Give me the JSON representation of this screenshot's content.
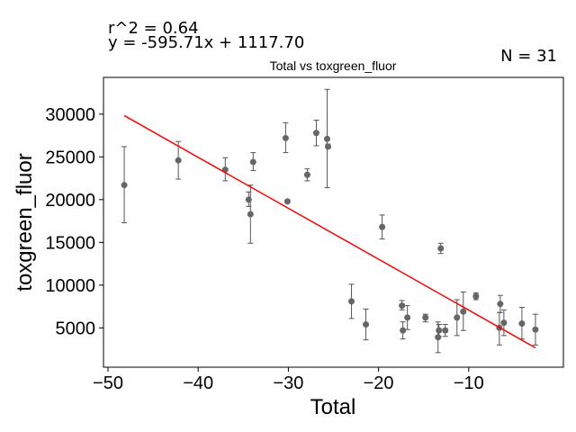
{
  "chart_data": {
    "type": "scatter",
    "title": "Total vs toxgreen_fluor",
    "xlabel": "Total",
    "ylabel": "toxgreen_fluor",
    "xlim": [
      -50.5,
      0.5
    ],
    "ylim": [
      400,
      34300
    ],
    "x_ticks": [
      -50,
      -40,
      -30,
      -20,
      -10
    ],
    "x_tick_labels": [
      "−50",
      "−40",
      "−30",
      "−20",
      "−10"
    ],
    "y_ticks": [
      5000,
      10000,
      15000,
      20000,
      25000,
      30000
    ],
    "y_tick_labels": [
      "5000",
      "10000",
      "15000",
      "20000",
      "25000",
      "30000"
    ],
    "grid": false,
    "annotations": {
      "r2": "r^2 = 0.64",
      "equation": "y = -595.71x + 1117.70",
      "n": "N = 31"
    },
    "regression": {
      "slope": -595.71,
      "intercept": 1117.7,
      "x_range": [
        -48.2,
        -2.6
      ]
    },
    "points": [
      {
        "x": -48.2,
        "y": 21700,
        "lo": 17300,
        "hi": 26200
      },
      {
        "x": -42.2,
        "y": 24600,
        "lo": 22400,
        "hi": 26800
      },
      {
        "x": -37.0,
        "y": 23500,
        "lo": 22200,
        "hi": 24900
      },
      {
        "x": -34.4,
        "y": 20000,
        "lo": 19200,
        "hi": 20900
      },
      {
        "x": -34.2,
        "y": 18300,
        "lo": 14900,
        "hi": 21700
      },
      {
        "x": -33.9,
        "y": 24400,
        "lo": 23400,
        "hi": 25500
      },
      {
        "x": -30.3,
        "y": 27200,
        "lo": 25500,
        "hi": 29000
      },
      {
        "x": -30.1,
        "y": 19800,
        "lo": 19700,
        "hi": 19900
      },
      {
        "x": -27.9,
        "y": 22900,
        "lo": 22200,
        "hi": 23600
      },
      {
        "x": -26.9,
        "y": 27800,
        "lo": 26300,
        "hi": 29300
      },
      {
        "x": -25.7,
        "y": 27100,
        "lo": 21400,
        "hi": 32900
      },
      {
        "x": -25.6,
        "y": 26200,
        "lo": 26000,
        "hi": 26500
      },
      {
        "x": -23.0,
        "y": 8100,
        "lo": 6100,
        "hi": 10100
      },
      {
        "x": -21.4,
        "y": 5400,
        "lo": 3600,
        "hi": 7200
      },
      {
        "x": -19.6,
        "y": 16800,
        "lo": 15400,
        "hi": 18200
      },
      {
        "x": -17.4,
        "y": 7600,
        "lo": 7100,
        "hi": 8200
      },
      {
        "x": -17.3,
        "y": 4700,
        "lo": 3700,
        "hi": 5700
      },
      {
        "x": -16.8,
        "y": 6200,
        "lo": 4800,
        "hi": 7600
      },
      {
        "x": -14.8,
        "y": 6200,
        "lo": 5700,
        "hi": 6600
      },
      {
        "x": -13.4,
        "y": 3900,
        "lo": 2100,
        "hi": 5700
      },
      {
        "x": -13.3,
        "y": 4700,
        "lo": 4000,
        "hi": 5400
      },
      {
        "x": -13.1,
        "y": 14300,
        "lo": 13700,
        "hi": 14900
      },
      {
        "x": -12.6,
        "y": 4700,
        "lo": 4000,
        "hi": 5400
      },
      {
        "x": -11.3,
        "y": 6200,
        "lo": 4100,
        "hi": 8300
      },
      {
        "x": -10.6,
        "y": 6900,
        "lo": 4700,
        "hi": 9200
      },
      {
        "x": -9.2,
        "y": 8700,
        "lo": 8300,
        "hi": 9100
      },
      {
        "x": -6.6,
        "y": 5000,
        "lo": 3000,
        "hi": 6800
      },
      {
        "x": -6.5,
        "y": 7800,
        "lo": 6800,
        "hi": 8800
      },
      {
        "x": -6.1,
        "y": 5600,
        "lo": 4100,
        "hi": 7100
      },
      {
        "x": -4.1,
        "y": 5500,
        "lo": 3700,
        "hi": 7400
      },
      {
        "x": -2.6,
        "y": 4800,
        "lo": 3000,
        "hi": 6600
      }
    ],
    "colors": {
      "points": "#666666",
      "errorbars": "#555555",
      "regression": "#ff0000",
      "axes": "#000000"
    }
  }
}
